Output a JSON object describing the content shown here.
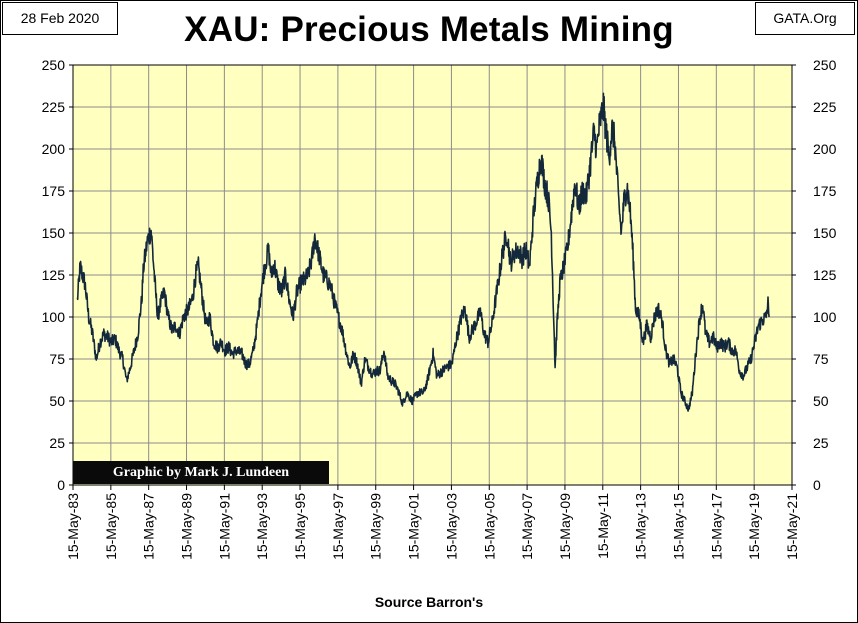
{
  "header": {
    "date": "28 Feb 2020",
    "source": "GATA.Org",
    "title": "XAU: Precious Metals Mining"
  },
  "credit": "Graphic by Mark J. Lundeen",
  "colors": {
    "plot_background": "#FFFFC0",
    "line": "#14283C",
    "grid": "#8C8C8C",
    "credit_box": "#0A0A0A"
  },
  "chart_data": {
    "type": "line",
    "title": "XAU: Precious Metals Mining",
    "xlabel": "Source Barron's",
    "ylabel": "",
    "ylim": [
      0,
      250
    ],
    "y_ticks": [
      "0",
      "25",
      "50",
      "75",
      "100",
      "125",
      "150",
      "175",
      "200",
      "225",
      "250"
    ],
    "x_ticks": [
      "15-May-83",
      "15-May-85",
      "15-May-87",
      "15-May-89",
      "15-May-91",
      "15-May-93",
      "15-May-95",
      "15-May-97",
      "15-May-99",
      "15-May-01",
      "15-May-03",
      "15-May-05",
      "15-May-07",
      "15-May-09",
      "15-May-11",
      "15-May-13",
      "15-May-15",
      "15-May-17",
      "15-May-19",
      "15-May-21"
    ],
    "grid": true,
    "y_axis_both_sides": true,
    "series": [
      {
        "values": [
          [
            1983.6,
            110
          ],
          [
            1983.75,
            130
          ],
          [
            1984.0,
            120
          ],
          [
            1984.2,
            100
          ],
          [
            1984.4,
            90
          ],
          [
            1984.6,
            75
          ],
          [
            1984.8,
            85
          ],
          [
            1985.0,
            90
          ],
          [
            1985.2,
            88
          ],
          [
            1985.4,
            85
          ],
          [
            1985.6,
            87
          ],
          [
            1985.8,
            80
          ],
          [
            1986.0,
            75
          ],
          [
            1986.2,
            62
          ],
          [
            1986.4,
            70
          ],
          [
            1986.6,
            80
          ],
          [
            1986.8,
            90
          ],
          [
            1987.0,
            110
          ],
          [
            1987.1,
            130
          ],
          [
            1987.3,
            145
          ],
          [
            1987.5,
            152
          ],
          [
            1987.7,
            120
          ],
          [
            1987.85,
            100
          ],
          [
            1988.0,
            108
          ],
          [
            1988.2,
            115
          ],
          [
            1988.4,
            100
          ],
          [
            1988.6,
            92
          ],
          [
            1988.8,
            95
          ],
          [
            1989.0,
            90
          ],
          [
            1989.2,
            100
          ],
          [
            1989.5,
            105
          ],
          [
            1989.7,
            112
          ],
          [
            1989.85,
            125
          ],
          [
            1990.0,
            130
          ],
          [
            1990.2,
            112
          ],
          [
            1990.4,
            95
          ],
          [
            1990.6,
            100
          ],
          [
            1990.8,
            85
          ],
          [
            1991.0,
            82
          ],
          [
            1991.2,
            85
          ],
          [
            1991.4,
            80
          ],
          [
            1991.6,
            82
          ],
          [
            1991.8,
            78
          ],
          [
            1992.0,
            80
          ],
          [
            1992.3,
            78
          ],
          [
            1992.5,
            72
          ],
          [
            1992.7,
            72
          ],
          [
            1992.9,
            80
          ],
          [
            1993.1,
            95
          ],
          [
            1993.3,
            115
          ],
          [
            1993.5,
            130
          ],
          [
            1993.7,
            140
          ],
          [
            1993.85,
            125
          ],
          [
            1994.0,
            132
          ],
          [
            1994.2,
            120
          ],
          [
            1994.4,
            115
          ],
          [
            1994.6,
            125
          ],
          [
            1994.8,
            110
          ],
          [
            1995.0,
            100
          ],
          [
            1995.2,
            115
          ],
          [
            1995.4,
            120
          ],
          [
            1995.6,
            122
          ],
          [
            1995.8,
            125
          ],
          [
            1996.0,
            135
          ],
          [
            1996.15,
            148
          ],
          [
            1996.35,
            138
          ],
          [
            1996.6,
            125
          ],
          [
            1996.8,
            122
          ],
          [
            1997.0,
            118
          ],
          [
            1997.2,
            108
          ],
          [
            1997.4,
            100
          ],
          [
            1997.6,
            92
          ],
          [
            1997.8,
            80
          ],
          [
            1998.0,
            70
          ],
          [
            1998.2,
            78
          ],
          [
            1998.4,
            72
          ],
          [
            1998.6,
            60
          ],
          [
            1998.8,
            75
          ],
          [
            1999.0,
            70
          ],
          [
            1999.2,
            66
          ],
          [
            1999.4,
            68
          ],
          [
            1999.6,
            68
          ],
          [
            1999.8,
            80
          ],
          [
            2000.0,
            65
          ],
          [
            2000.2,
            62
          ],
          [
            2000.4,
            60
          ],
          [
            2000.6,
            55
          ],
          [
            2000.8,
            48
          ],
          [
            2001.0,
            55
          ],
          [
            2001.3,
            50
          ],
          [
            2001.6,
            55
          ],
          [
            2001.9,
            55
          ],
          [
            2002.1,
            62
          ],
          [
            2002.4,
            78
          ],
          [
            2002.6,
            65
          ],
          [
            2002.9,
            68
          ],
          [
            2003.1,
            70
          ],
          [
            2003.4,
            72
          ],
          [
            2003.6,
            85
          ],
          [
            2003.9,
            100
          ],
          [
            2004.1,
            105
          ],
          [
            2004.3,
            88
          ],
          [
            2004.6,
            95
          ],
          [
            2004.9,
            103
          ],
          [
            2005.1,
            90
          ],
          [
            2005.3,
            85
          ],
          [
            2005.5,
            95
          ],
          [
            2005.7,
            110
          ],
          [
            2005.9,
            125
          ],
          [
            2006.1,
            140
          ],
          [
            2006.3,
            150
          ],
          [
            2006.5,
            132
          ],
          [
            2006.7,
            138
          ],
          [
            2006.9,
            140
          ],
          [
            2007.1,
            135
          ],
          [
            2007.3,
            140
          ],
          [
            2007.5,
            130
          ],
          [
            2007.7,
            160
          ],
          [
            2007.9,
            180
          ],
          [
            2008.1,
            195
          ],
          [
            2008.3,
            180
          ],
          [
            2008.5,
            170
          ],
          [
            2008.65,
            150
          ],
          [
            2008.75,
            110
          ],
          [
            2008.85,
            70
          ],
          [
            2008.95,
            95
          ],
          [
            2009.1,
            120
          ],
          [
            2009.3,
            130
          ],
          [
            2009.5,
            140
          ],
          [
            2009.7,
            160
          ],
          [
            2009.9,
            180
          ],
          [
            2010.1,
            165
          ],
          [
            2010.3,
            175
          ],
          [
            2010.5,
            172
          ],
          [
            2010.7,
            190
          ],
          [
            2010.9,
            210
          ],
          [
            2011.05,
            200
          ],
          [
            2011.2,
            215
          ],
          [
            2011.4,
            225
          ],
          [
            2011.55,
            210
          ],
          [
            2011.7,
            195
          ],
          [
            2011.85,
            212
          ],
          [
            2012.0,
            205
          ],
          [
            2012.2,
            170
          ],
          [
            2012.35,
            150
          ],
          [
            2012.5,
            170
          ],
          [
            2012.65,
            178
          ],
          [
            2012.8,
            165
          ],
          [
            2012.9,
            150
          ],
          [
            2013.0,
            130
          ],
          [
            2013.1,
            105
          ],
          [
            2013.3,
            100
          ],
          [
            2013.5,
            85
          ],
          [
            2013.7,
            95
          ],
          [
            2013.9,
            88
          ],
          [
            2014.1,
            100
          ],
          [
            2014.3,
            105
          ],
          [
            2014.5,
            98
          ],
          [
            2014.7,
            80
          ],
          [
            2014.9,
            72
          ],
          [
            2015.1,
            75
          ],
          [
            2015.3,
            70
          ],
          [
            2015.5,
            55
          ],
          [
            2015.7,
            50
          ],
          [
            2015.9,
            45
          ],
          [
            2016.1,
            55
          ],
          [
            2016.3,
            80
          ],
          [
            2016.5,
            100
          ],
          [
            2016.65,
            108
          ],
          [
            2016.8,
            90
          ],
          [
            2017.0,
            85
          ],
          [
            2017.2,
            88
          ],
          [
            2017.4,
            82
          ],
          [
            2017.6,
            85
          ],
          [
            2017.8,
            82
          ],
          [
            2018.0,
            85
          ],
          [
            2018.2,
            80
          ],
          [
            2018.4,
            80
          ],
          [
            2018.6,
            68
          ],
          [
            2018.8,
            65
          ],
          [
            2019.0,
            70
          ],
          [
            2019.2,
            75
          ],
          [
            2019.4,
            85
          ],
          [
            2019.6,
            95
          ],
          [
            2019.8,
            98
          ],
          [
            2020.0,
            100
          ],
          [
            2020.1,
            108
          ],
          [
            2020.16,
            100
          ]
        ]
      }
    ]
  }
}
